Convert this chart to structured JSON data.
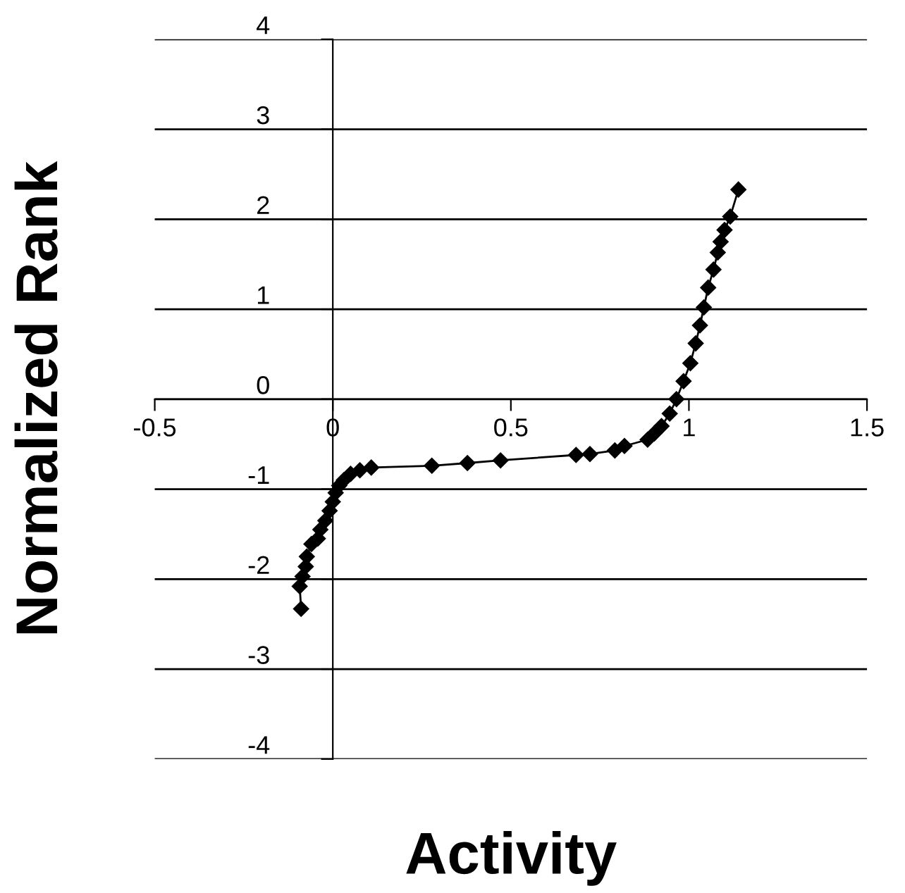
{
  "chart_data": {
    "type": "line",
    "xlabel": "Activity",
    "ylabel": "Normalized Rank",
    "xlim": [
      -0.5,
      1.5
    ],
    "ylim": [
      -4,
      4
    ],
    "xticks": [
      -0.5,
      0,
      0.5,
      1,
      1.5
    ],
    "yticks": [
      -4,
      -3,
      -2,
      -1,
      0,
      1,
      2,
      3,
      4
    ],
    "grid": "y",
    "marker": "diamond",
    "line_style": "solid",
    "series": [
      {
        "color": "#000000",
        "x": [
          -0.089,
          -0.093,
          -0.085,
          -0.076,
          -0.073,
          -0.06,
          -0.042,
          -0.035,
          -0.021,
          -0.009,
          0.0,
          0.008,
          0.018,
          0.031,
          0.05,
          0.076,
          0.108,
          0.278,
          0.378,
          0.471,
          0.683,
          0.722,
          0.792,
          0.819,
          0.884,
          0.903,
          0.923,
          0.946,
          0.965,
          0.985,
          1.004,
          1.019,
          1.031,
          1.042,
          1.054,
          1.069,
          1.081,
          1.089,
          1.1,
          1.116,
          1.139
        ],
        "values": [
          -2.33,
          -2.08,
          -1.97,
          -1.86,
          -1.75,
          -1.61,
          -1.55,
          -1.45,
          -1.35,
          -1.24,
          -1.14,
          -1.04,
          -0.96,
          -0.9,
          -0.83,
          -0.79,
          -0.76,
          -0.74,
          -0.71,
          -0.68,
          -0.62,
          -0.61,
          -0.57,
          -0.52,
          -0.45,
          -0.38,
          -0.3,
          -0.16,
          0.0,
          0.2,
          0.4,
          0.62,
          0.82,
          1.02,
          1.24,
          1.44,
          1.63,
          1.75,
          1.88,
          2.03,
          2.33
        ]
      }
    ]
  }
}
